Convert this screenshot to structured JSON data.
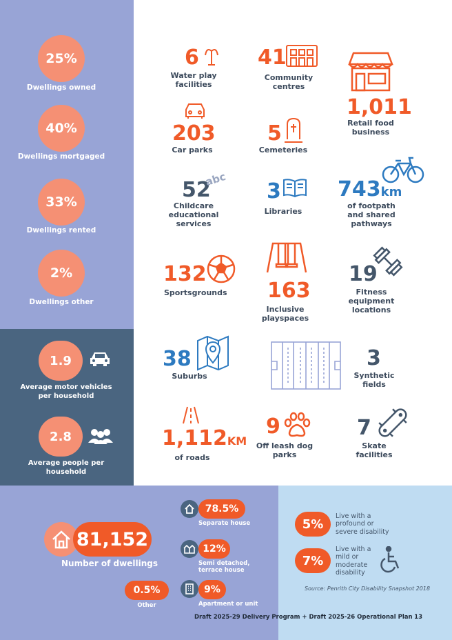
{
  "ownership": [
    {
      "value": "25%",
      "label": "Dwellings owned"
    },
    {
      "value": "40%",
      "label": "Dwellings mortgaged"
    },
    {
      "value": "33%",
      "label": "Dwellings rented"
    },
    {
      "value": "2%",
      "label": "Dwellings other"
    }
  ],
  "household": {
    "vehicles": {
      "value": "1.9",
      "label": "Average motor vehicles per household"
    },
    "people": {
      "value": "2.8",
      "label": "Average people per household"
    }
  },
  "facilities": {
    "water_play": {
      "value": "6",
      "label": "Water play facilities"
    },
    "community": {
      "value": "41",
      "label": "Community centres"
    },
    "retail": {
      "value": "1,011",
      "label": "Retail food business"
    },
    "car_parks": {
      "value": "203",
      "label": "Car parks"
    },
    "cemeteries": {
      "value": "5",
      "label": "Cemeteries"
    },
    "childcare": {
      "value": "52",
      "label": "Childcare educational services",
      "icon_text": "abc"
    },
    "libraries": {
      "value": "3",
      "label": "Libraries"
    },
    "footpath": {
      "value": "743",
      "unit": "km",
      "label": "of footpath and shared pathways"
    },
    "sportsgrounds": {
      "value": "132",
      "label": "Sportsgrounds"
    },
    "playspaces": {
      "value": "163",
      "label": "Inclusive playspaces"
    },
    "fitness": {
      "value": "19",
      "label": "Fitness equipment locations"
    },
    "suburbs": {
      "value": "38",
      "label": "Suburbs"
    },
    "synthetic": {
      "value": "3",
      "label": "Synthetic fields"
    },
    "roads": {
      "value": "1,112",
      "unit": "KM",
      "label": "of roads"
    },
    "dog_parks": {
      "value": "9",
      "label": "Off leash dog parks"
    },
    "skate": {
      "value": "7",
      "label": "Skate facilities"
    }
  },
  "dwellings": {
    "total": "81,152",
    "total_label": "Number of dwellings",
    "types": [
      {
        "value": "78.5%",
        "label": "Separate house"
      },
      {
        "value": "12%",
        "label": "Semi detached, terrace house"
      },
      {
        "value": "9%",
        "label": "Apartment or unit"
      },
      {
        "value": "0.5%",
        "label": "Other"
      }
    ]
  },
  "disability": {
    "items": [
      {
        "value": "5%",
        "label": "Live with a profound or severe disability"
      },
      {
        "value": "7%",
        "label": "Live with a mild or moderate disability"
      }
    ],
    "source": "Source: Penrith City Disability Snapshot 2018"
  },
  "footer": {
    "title": "Draft 2025-29 Delivery Program + Draft 2025-26 Operational Plan",
    "page": "13"
  },
  "colors": {
    "orange": "#f05a28",
    "salmon": "#f59074",
    "lavender": "#98a4d6",
    "slate": "#4a6580",
    "blue": "#2d7ac0",
    "light_blue": "#bfdcf2"
  },
  "icons": [
    "fountain-icon",
    "building-icon",
    "shop-icon",
    "car-icon",
    "headstone-icon",
    "abc-icon",
    "book-icon",
    "bicycle-icon",
    "ball-icon",
    "swing-icon",
    "dumbbell-icon",
    "map-pin-icon",
    "field-icon",
    "road-icon",
    "paw-icon",
    "skateboard-icon",
    "house-icon",
    "people-icon",
    "wheelchair-icon"
  ]
}
